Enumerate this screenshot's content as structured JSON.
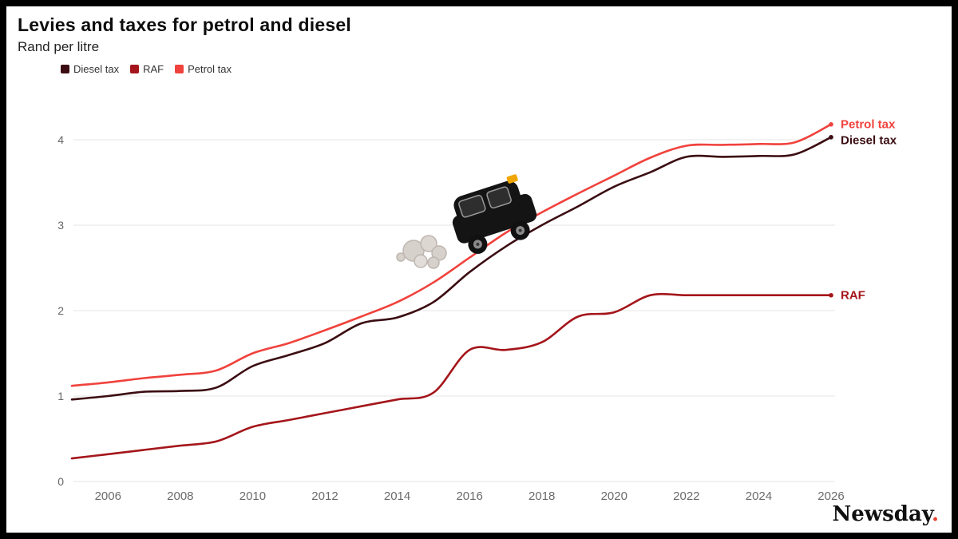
{
  "page": {
    "title": "Levies and taxes for petrol and diesel",
    "subtitle": "Rand per litre",
    "brand": {
      "name": "Newsday",
      "dot": ".",
      "dot_color": "#e8402f"
    }
  },
  "icons": {
    "car": "car-icon",
    "smoke": "exhaust-smoke-icon"
  },
  "chart_data": {
    "type": "line",
    "title": "Levies and taxes for petrol and diesel",
    "subtitle": "Rand per litre",
    "xlabel": "",
    "ylabel": "Rand per litre",
    "grid": "horizontal",
    "legend_position": "top-left",
    "end_labels": true,
    "xlim": [
      2005,
      2026.2
    ],
    "ylim": [
      0,
      4.4
    ],
    "yticks": [
      0,
      1,
      2,
      3,
      4
    ],
    "xticks": [
      2006,
      2008,
      2010,
      2012,
      2014,
      2016,
      2018,
      2020,
      2022,
      2024,
      2026
    ],
    "x": [
      2005,
      2006,
      2007,
      2008,
      2009,
      2010,
      2011,
      2012,
      2013,
      2014,
      2015,
      2016,
      2017,
      2018,
      2019,
      2020,
      2021,
      2022,
      2023,
      2024,
      2025,
      2026
    ],
    "series": [
      {
        "name": "Diesel tax",
        "color": "#3b0d12",
        "values": [
          0.96,
          1.0,
          1.05,
          1.06,
          1.1,
          1.35,
          1.48,
          1.62,
          1.85,
          1.92,
          2.1,
          2.45,
          2.75,
          3.0,
          3.22,
          3.45,
          3.62,
          3.8,
          3.8,
          3.81,
          3.83,
          4.03
        ]
      },
      {
        "name": "RAF",
        "color": "#a4161b",
        "values": [
          0.27,
          0.32,
          0.37,
          0.42,
          0.47,
          0.64,
          0.72,
          0.8,
          0.88,
          0.96,
          1.04,
          1.54,
          1.54,
          1.63,
          1.93,
          1.98,
          2.18,
          2.18,
          2.18,
          2.18,
          2.18,
          2.18
        ]
      },
      {
        "name": "Petrol tax",
        "color": "#f0423c",
        "values": [
          1.12,
          1.16,
          1.21,
          1.25,
          1.3,
          1.5,
          1.62,
          1.77,
          1.93,
          2.1,
          2.33,
          2.62,
          2.91,
          3.15,
          3.37,
          3.58,
          3.79,
          3.93,
          3.94,
          3.95,
          3.97,
          4.18
        ]
      }
    ]
  }
}
